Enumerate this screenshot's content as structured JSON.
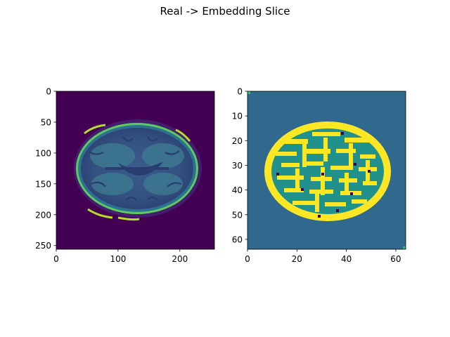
{
  "figure": {
    "title": "Real -> Embedding Slice"
  },
  "chart_data": [
    {
      "type": "heatmap",
      "panel": "left",
      "content": "axial brain MRI slice",
      "colormap": "viridis",
      "xlim": [
        0,
        256
      ],
      "ylim": [
        256,
        0
      ],
      "x_ticks": [
        0,
        100,
        200
      ],
      "y_ticks": [
        0,
        50,
        100,
        150,
        200,
        250
      ],
      "x_tick_labels": [
        "0",
        "100",
        "200"
      ],
      "y_tick_labels": [
        "0",
        "50",
        "100",
        "150",
        "200",
        "250"
      ],
      "grid": false
    },
    {
      "type": "heatmap",
      "panel": "right",
      "content": "embedding slice (discrete codes)",
      "colormap": "viridis",
      "xlim": [
        0,
        64
      ],
      "ylim": [
        64,
        0
      ],
      "x_ticks": [
        0,
        20,
        40,
        60
      ],
      "y_ticks": [
        0,
        10,
        20,
        30,
        40,
        50,
        60
      ],
      "x_tick_labels": [
        "0",
        "20",
        "40",
        "60"
      ],
      "y_tick_labels": [
        "0",
        "10",
        "20",
        "30",
        "40",
        "50",
        "60"
      ],
      "grid": false
    }
  ],
  "colors": {
    "viridis_dark": "#440154",
    "viridis_blue": "#31688e",
    "viridis_teal": "#21918c",
    "viridis_green": "#35b779",
    "viridis_yellow": "#fde725",
    "brain_mid": "#3b5c8c",
    "brain_light": "#4ea08f"
  }
}
